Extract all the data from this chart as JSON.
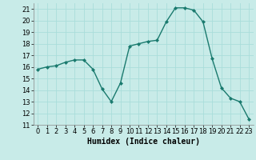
{
  "x": [
    0,
    1,
    2,
    3,
    4,
    5,
    6,
    7,
    8,
    9,
    10,
    11,
    12,
    13,
    14,
    15,
    16,
    17,
    18,
    19,
    20,
    21,
    22,
    23
  ],
  "y": [
    15.8,
    16.0,
    16.1,
    16.4,
    16.6,
    16.6,
    15.8,
    14.1,
    13.0,
    14.6,
    17.8,
    18.0,
    18.2,
    18.3,
    19.9,
    21.1,
    21.1,
    20.9,
    19.9,
    16.7,
    14.2,
    13.3,
    13.0,
    11.5
  ],
  "line_color": "#1a7a6e",
  "marker": "D",
  "marker_size": 2.0,
  "bg_color": "#c8ebe8",
  "grid_color": "#b0d8d4",
  "xlabel": "Humidex (Indice chaleur)",
  "ylim": [
    11,
    21.5
  ],
  "xlim": [
    -0.5,
    23.5
  ],
  "yticks": [
    11,
    12,
    13,
    14,
    15,
    16,
    17,
    18,
    19,
    20,
    21
  ],
  "xticks": [
    0,
    1,
    2,
    3,
    4,
    5,
    6,
    7,
    8,
    9,
    10,
    11,
    12,
    13,
    14,
    15,
    16,
    17,
    18,
    19,
    20,
    21,
    22,
    23
  ],
  "xlabel_fontsize": 7,
  "tick_fontsize": 6,
  "linewidth": 1.0
}
